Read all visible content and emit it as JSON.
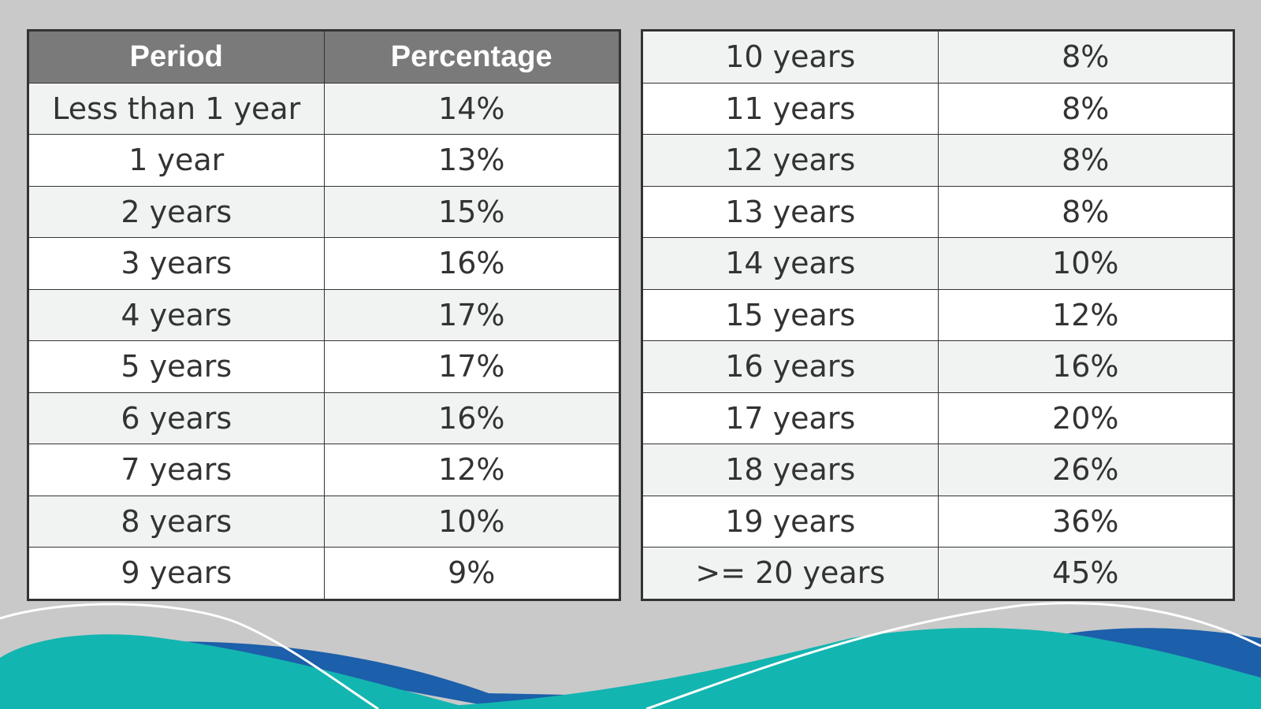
{
  "left_table": {
    "headers": [
      "Period",
      "Percentage"
    ],
    "rows": [
      {
        "period": "Less than 1 year",
        "percentage": "14%"
      },
      {
        "period": "1 year",
        "percentage": "13%"
      },
      {
        "period": "2 years",
        "percentage": "15%"
      },
      {
        "period": "3 years",
        "percentage": "16%"
      },
      {
        "period": "4 years",
        "percentage": "17%"
      },
      {
        "period": "5 years",
        "percentage": "17%"
      },
      {
        "period": "6 years",
        "percentage": "16%"
      },
      {
        "period": "7 years",
        "percentage": "12%"
      },
      {
        "period": "8 years",
        "percentage": "10%"
      },
      {
        "period": "9 years",
        "percentage": "9%"
      }
    ]
  },
  "right_table": {
    "rows": [
      {
        "period": "10 years",
        "percentage": "8%"
      },
      {
        "period": "11 years",
        "percentage": "8%"
      },
      {
        "period": "12 years",
        "percentage": "8%"
      },
      {
        "period": "13 years",
        "percentage": "8%"
      },
      {
        "period": "14 years",
        "percentage": "10%"
      },
      {
        "period": "15 years",
        "percentage": "12%"
      },
      {
        "period": "16 years",
        "percentage": "16%"
      },
      {
        "period": "17 years",
        "percentage": "20%"
      },
      {
        "period": "18 years",
        "percentage": "26%"
      },
      {
        "period": "19 years",
        "percentage": "36%"
      },
      {
        "period": ">= 20 years",
        "percentage": "45%"
      }
    ]
  },
  "colors": {
    "background": "#c9c9c9",
    "header_bg": "#7a7a7a",
    "row_alt": "#f1f2f2",
    "wave_teal": "#13b5b0",
    "wave_blue": "#1c5faa"
  }
}
